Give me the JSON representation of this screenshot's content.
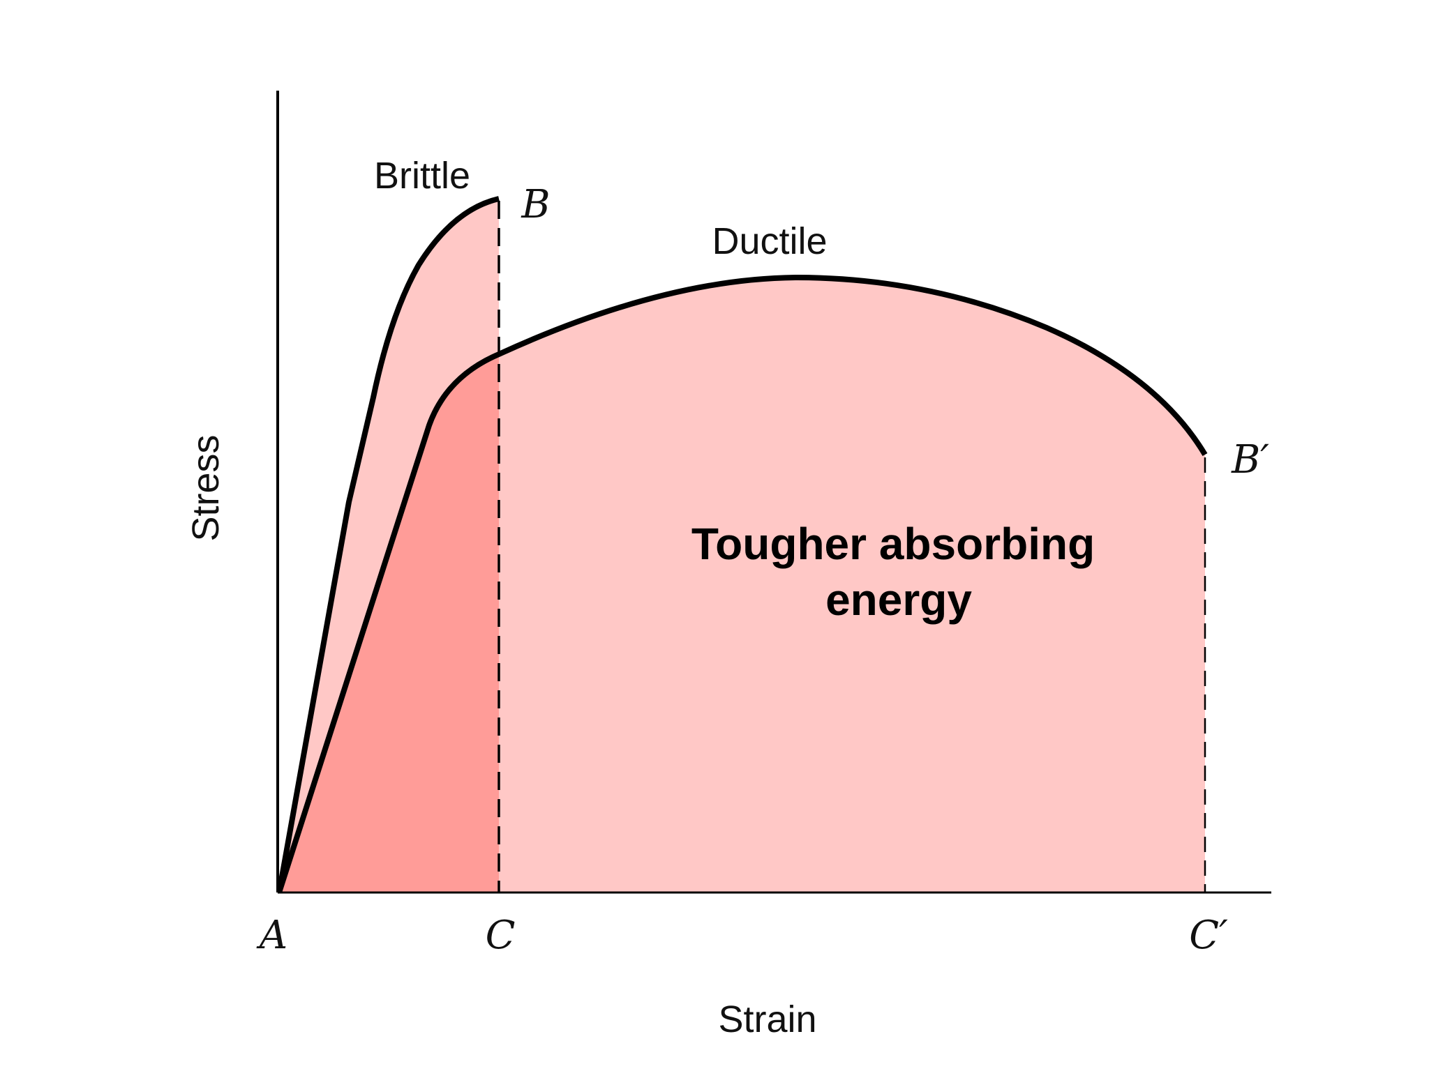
{
  "axes": {
    "y_label": "Stress",
    "x_label": "Strain"
  },
  "curves": {
    "brittle_label": "Brittle",
    "ductile_label": "Ductile"
  },
  "points": {
    "origin": "A",
    "brittle_end": "B",
    "ductile_end": "B′",
    "brittle_strain": "C",
    "ductile_strain": "C′"
  },
  "annotation": {
    "line1": "Tougher absorbing",
    "line2": "energy"
  },
  "colors": {
    "light_fill": "#ffc8c6",
    "overlap_fill": "#ff9c98",
    "stroke": "#000000"
  }
}
